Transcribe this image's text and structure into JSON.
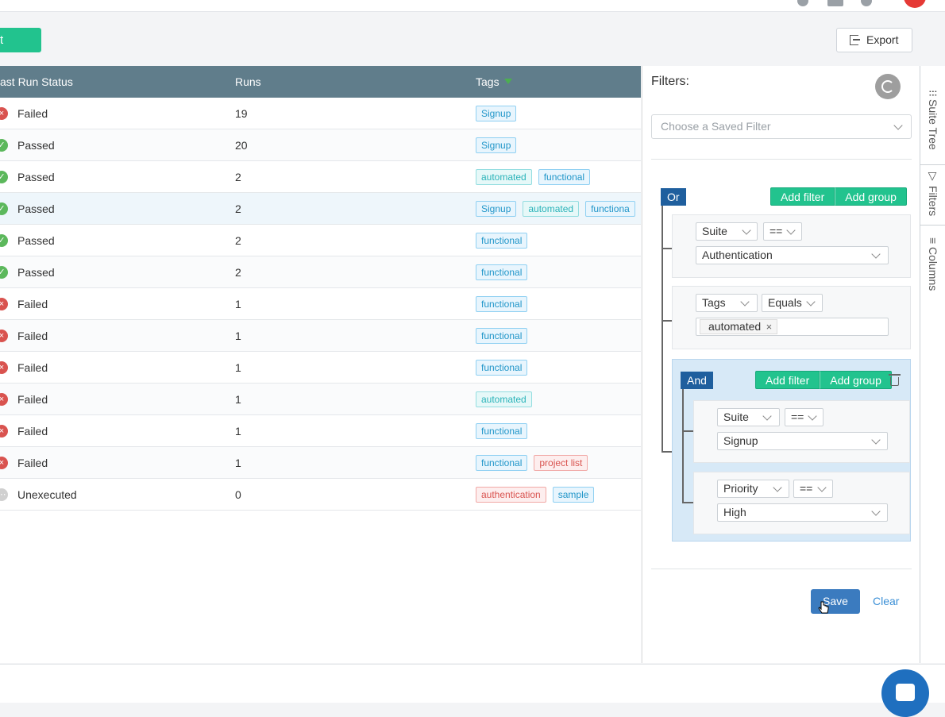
{
  "toolbar": {
    "plan_button_label": "t Plan",
    "export_label": "Export"
  },
  "table": {
    "columns": {
      "status": "ast Run Status",
      "runs": "Runs",
      "tags": "Tags"
    },
    "rows": [
      {
        "status": "Failed",
        "runs": "19",
        "tags": [
          {
            "label": "Signup",
            "color": "blue"
          }
        ]
      },
      {
        "status": "Passed",
        "runs": "20",
        "tags": [
          {
            "label": "Signup",
            "color": "blue"
          }
        ]
      },
      {
        "status": "Passed",
        "runs": "2",
        "tags": [
          {
            "label": "automated",
            "color": "teal"
          },
          {
            "label": "functional",
            "color": "blue"
          }
        ]
      },
      {
        "status": "Passed",
        "runs": "2",
        "tags": [
          {
            "label": "Signup",
            "color": "blue"
          },
          {
            "label": "automated",
            "color": "teal"
          },
          {
            "label": "functiona",
            "color": "blue"
          }
        ]
      },
      {
        "status": "Passed",
        "runs": "2",
        "tags": [
          {
            "label": "functional",
            "color": "blue"
          }
        ]
      },
      {
        "status": "Passed",
        "runs": "2",
        "tags": [
          {
            "label": "functional",
            "color": "blue"
          }
        ]
      },
      {
        "status": "Failed",
        "runs": "1",
        "tags": [
          {
            "label": "functional",
            "color": "blue"
          }
        ]
      },
      {
        "status": "Failed",
        "runs": "1",
        "tags": [
          {
            "label": "functional",
            "color": "blue"
          }
        ]
      },
      {
        "status": "Failed",
        "runs": "1",
        "tags": [
          {
            "label": "functional",
            "color": "blue"
          }
        ]
      },
      {
        "status": "Failed",
        "runs": "1",
        "tags": [
          {
            "label": "automated",
            "color": "teal"
          }
        ]
      },
      {
        "status": "Failed",
        "runs": "1",
        "tags": [
          {
            "label": "functional",
            "color": "blue"
          }
        ]
      },
      {
        "status": "Failed",
        "runs": "1",
        "tags": [
          {
            "label": "functional",
            "color": "blue"
          },
          {
            "label": "project list",
            "color": "red"
          }
        ]
      },
      {
        "status": "Unexecuted",
        "runs": "0",
        "tags": [
          {
            "label": "authentication",
            "color": "red"
          },
          {
            "label": "sample",
            "color": "blue"
          }
        ]
      }
    ]
  },
  "filters": {
    "title": "Filters:",
    "saved_filter_placeholder": "Choose a Saved Filter",
    "root_operator": "Or",
    "add_filter_label": "Add filter",
    "add_group_label": "Add group",
    "rule1": {
      "field": "Suite",
      "operator": "==",
      "value": "Authentication"
    },
    "rule2": {
      "field": "Tags",
      "operator": "Equals",
      "chip": "automated"
    },
    "group": {
      "operator": "And",
      "rule1": {
        "field": "Suite",
        "operator": "==",
        "value": "Signup"
      },
      "rule2": {
        "field": "Priority",
        "operator": "==",
        "value": "High"
      }
    },
    "save_label": "Save",
    "clear_label": "Clear"
  },
  "sidetabs": {
    "suite_tree": "Suite Tree",
    "filters": "Filters",
    "columns": "Columns"
  },
  "colors": {
    "accent_green": "#22c38e",
    "header": "#607d8b",
    "operator_blue": "#1f5f9e",
    "failed": "#d9534f",
    "passed": "#5cb85c"
  }
}
